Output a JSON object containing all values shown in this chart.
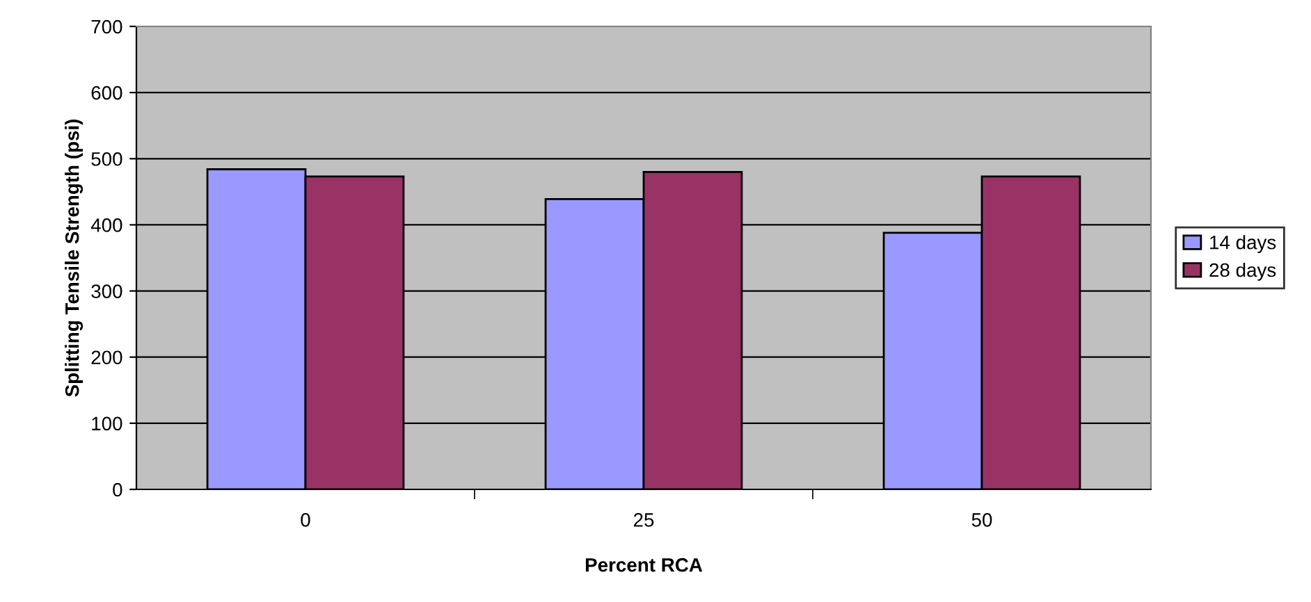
{
  "chart_data": {
    "type": "bar",
    "xlabel": "Percent RCA",
    "ylabel": "Splitting Tensile Strength (psi)",
    "categories": [
      "0",
      "25",
      "50"
    ],
    "series": [
      {
        "name": "14 days",
        "color": "#9999ff",
        "values": [
          484,
          439,
          388
        ]
      },
      {
        "name": "28 days",
        "color": "#993366",
        "values": [
          473,
          480,
          473
        ]
      }
    ],
    "ylim": [
      0,
      700
    ],
    "yticks": [
      0,
      100,
      200,
      300,
      400,
      500,
      600,
      700
    ],
    "grid": "y",
    "legend": "right"
  }
}
